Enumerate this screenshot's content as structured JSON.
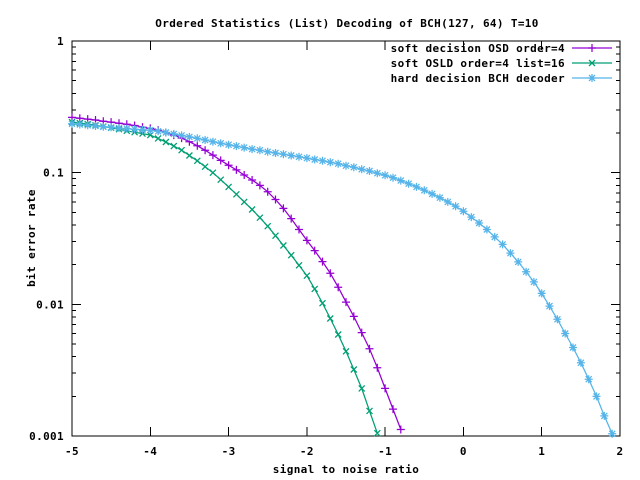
{
  "chart_data": {
    "type": "line",
    "title": "Ordered Statistics (List) Decoding of BCH(127, 64) T=10",
    "xlabel": "signal to noise ratio",
    "ylabel": "bit error rate",
    "x_range": [
      -5,
      2
    ],
    "y_range": [
      0.001,
      1
    ],
    "y_scale": "log",
    "grid": false,
    "legend_position": "top-right-inside",
    "background_color": "#ffffff",
    "axis_color": "#000000",
    "x_ticks": [
      {
        "value": -5,
        "label": "-5"
      },
      {
        "value": -4,
        "label": "-4"
      },
      {
        "value": -3,
        "label": "-3"
      },
      {
        "value": -2,
        "label": "-2"
      },
      {
        "value": -1,
        "label": "-1"
      },
      {
        "value": 0,
        "label": "0"
      },
      {
        "value": 1,
        "label": "1"
      },
      {
        "value": 2,
        "label": "2"
      }
    ],
    "y_ticks": [
      {
        "value": 1,
        "label": "1"
      },
      {
        "value": 0.1,
        "label": "0.1"
      },
      {
        "value": 0.01,
        "label": "0.01"
      },
      {
        "value": 0.001,
        "label": "0.001"
      }
    ],
    "series": [
      {
        "name": "soft decision OSD order=4",
        "color": "#9400d3",
        "marker": "plus",
        "x_start": -5.0,
        "x_step": 0.1,
        "values": [
          0.263,
          0.259,
          0.255,
          0.251,
          0.246,
          0.242,
          0.237,
          0.233,
          0.228,
          0.222,
          0.217,
          0.21,
          0.202,
          0.193,
          0.183,
          0.172,
          0.16,
          0.148,
          0.136,
          0.124,
          0.114,
          0.105,
          0.096,
          0.088,
          0.08,
          0.0715,
          0.0625,
          0.0535,
          0.0448,
          0.037,
          0.0306,
          0.0256,
          0.0211,
          0.0172,
          0.0135,
          0.0104,
          0.0081,
          0.0061,
          0.0046,
          0.0033,
          0.0023,
          0.0016,
          0.00112
        ]
      },
      {
        "name": "soft OSLD order=4 list=16",
        "color": "#009e73",
        "marker": "cross",
        "x_start": -5.0,
        "x_step": 0.1,
        "values": [
          0.242,
          0.238,
          0.234,
          0.229,
          0.224,
          0.219,
          0.214,
          0.208,
          0.203,
          0.198,
          0.193,
          0.182,
          0.171,
          0.159,
          0.148,
          0.135,
          0.123,
          0.111,
          0.1,
          0.0885,
          0.078,
          0.0685,
          0.06,
          0.0525,
          0.0455,
          0.0392,
          0.0332,
          0.028,
          0.0236,
          0.0198,
          0.0165,
          0.0131,
          0.0102,
          0.0078,
          0.0059,
          0.0044,
          0.0032,
          0.0023,
          0.00155,
          0.00105
        ]
      },
      {
        "name": "hard decision BCH decoder",
        "color": "#56b4e9",
        "marker": "star",
        "x_start": -5.0,
        "x_step": 0.1,
        "values": [
          0.235,
          0.232,
          0.229,
          0.226,
          0.223,
          0.221,
          0.218,
          0.216,
          0.214,
          0.212,
          0.21,
          0.206,
          0.202,
          0.197,
          0.192,
          0.187,
          0.182,
          0.177,
          0.172,
          0.167,
          0.163,
          0.159,
          0.155,
          0.151,
          0.148,
          0.144,
          0.141,
          0.138,
          0.135,
          0.132,
          0.129,
          0.126,
          0.123,
          0.12,
          0.117,
          0.113,
          0.11,
          0.106,
          0.103,
          0.099,
          0.0955,
          0.0915,
          0.087,
          0.0825,
          0.078,
          0.0735,
          0.069,
          0.0645,
          0.06,
          0.0555,
          0.051,
          0.046,
          0.0415,
          0.037,
          0.0325,
          0.0285,
          0.0245,
          0.021,
          0.0177,
          0.0148,
          0.0121,
          0.0097,
          0.0077,
          0.006,
          0.0047,
          0.0036,
          0.0027,
          0.002,
          0.00142,
          0.00104
        ]
      }
    ]
  }
}
